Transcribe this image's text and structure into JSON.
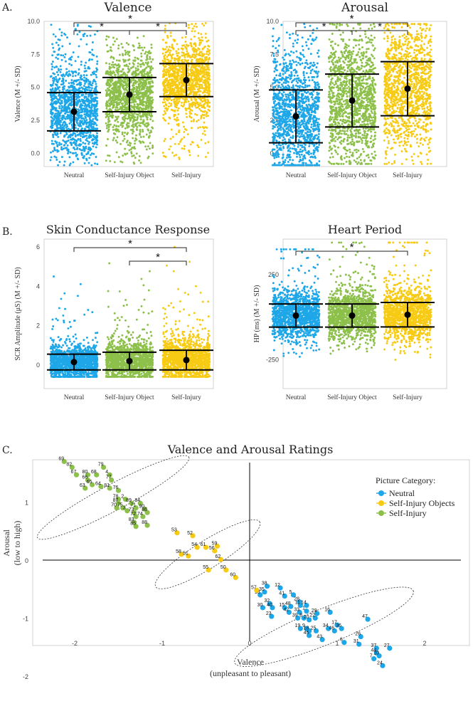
{
  "colors": {
    "neutral": "#1ea7e8",
    "self_injury_object": "#8cc04a",
    "self_injury": "#f7cb14"
  },
  "panel_labels": {
    "a": "A.",
    "b": "B.",
    "c": "C."
  },
  "chart_data": [
    {
      "type": "scatter",
      "id": "valence",
      "title": "Valence",
      "ylabel": "Valence (M +/- SD)",
      "ylim": [
        -1,
        10
      ],
      "yticks": [
        "0.0",
        "2.5",
        "5.0",
        "7.5",
        "10.0"
      ],
      "categories": [
        "Neutral",
        "Self-Injury Object",
        "Self-Injury"
      ],
      "means": [
        3.15,
        4.45,
        5.55
      ],
      "sd": [
        1.45,
        1.3,
        1.25
      ],
      "jitter_range": [
        [
          -0.9,
          9.8
        ],
        [
          -0.8,
          9.0
        ],
        [
          -0.5,
          10.0
        ]
      ],
      "significance": [
        "*",
        "*",
        "*"
      ]
    },
    {
      "type": "scatter",
      "id": "arousal",
      "title": "Arousal",
      "ylabel": "Arousal (M +/- SD)",
      "ylim": [
        -1,
        10
      ],
      "yticks": [
        "0.0",
        "2.5",
        "5.0",
        "7.5",
        "10.0"
      ],
      "categories": [
        "Neutral",
        "Self-Injury Object",
        "Self-Injury"
      ],
      "means": [
        2.8,
        4.0,
        4.9
      ],
      "sd": [
        2.0,
        2.0,
        2.05
      ],
      "jitter_range": [
        [
          -0.9,
          9.8
        ],
        [
          -0.8,
          9.8
        ],
        [
          -0.8,
          9.8
        ]
      ],
      "significance": [
        "*",
        "*",
        "*"
      ]
    },
    {
      "type": "scatter",
      "id": "scr",
      "title": "Skin Conductance Response",
      "ylabel": "SCR Amplitude (μS) (M +/- SD)",
      "ylim": [
        -1.2,
        6.4
      ],
      "yticks": [
        "0",
        "2",
        "4",
        "6"
      ],
      "categories": [
        "Neutral",
        "Self-Injury Object",
        "Self-Injury"
      ],
      "means": [
        0.15,
        0.2,
        0.25
      ],
      "sd": [
        0.4,
        0.45,
        0.5
      ],
      "jitter_range": [
        [
          -0.6,
          4.5
        ],
        [
          -0.6,
          5.5
        ],
        [
          -0.6,
          6.0
        ]
      ],
      "significance": [
        "*",
        "*"
      ]
    },
    {
      "type": "scatter",
      "id": "hp",
      "title": "Heart Period",
      "ylabel": "HP (ms) (M +/- SD)",
      "ylim": [
        -420,
        460
      ],
      "yticks": [
        "-250",
        "0",
        "250"
      ],
      "categories": [
        "Neutral",
        "Self-Injury Object",
        "Self-Injury"
      ],
      "means": [
        10,
        10,
        15
      ],
      "sd": [
        68,
        68,
        72
      ],
      "jitter_range": [
        [
          -390,
          400
        ],
        [
          -250,
          440
        ],
        [
          -320,
          440
        ]
      ],
      "significance": [
        "*"
      ]
    },
    {
      "type": "scatter",
      "id": "va",
      "title": "Valence and Arousal Ratings",
      "xlabel": "Valence",
      "xlabel2": "(unpleasant to pleasant)",
      "ylabel": "Arousal",
      "ylabel2": "(low to high)",
      "xlim": [
        -2.5,
        2.5
      ],
      "ylim": [
        -2.1,
        1.8
      ],
      "xticks": [
        "-2",
        "-1",
        "0",
        "1",
        "2"
      ],
      "yticks": [
        "-2",
        "-1",
        "0",
        "1"
      ],
      "legend_title": "Picture Category:",
      "legend": [
        "Neutral",
        "Self-Injury Objects",
        "Self-Injury"
      ],
      "series": [
        {
          "name": "Neutral",
          "points": [
            [
              "38",
              0.2,
              -0.45
            ],
            [
              "12",
              0.35,
              -0.48
            ],
            [
              "35",
              0.17,
              -0.55
            ],
            [
              "13",
              0.12,
              -0.6
            ],
            [
              "41",
              0.4,
              -0.62
            ],
            [
              "5",
              0.5,
              -0.6
            ],
            [
              "28",
              0.57,
              -0.72
            ],
            [
              "32",
              0.23,
              -0.75
            ],
            [
              "30",
              0.15,
              -0.82
            ],
            [
              "40",
              0.26,
              -0.82
            ],
            [
              "15",
              0.4,
              -0.82
            ],
            [
              "48",
              0.47,
              -0.8
            ],
            [
              "11",
              0.58,
              -0.78
            ],
            [
              "14",
              0.65,
              -0.78
            ],
            [
              "29",
              0.77,
              -0.92
            ],
            [
              "16",
              0.92,
              -0.9
            ],
            [
              "42",
              0.45,
              -0.9
            ],
            [
              "33",
              0.57,
              -0.9
            ],
            [
              "1",
              0.65,
              -0.88
            ],
            [
              "23",
              0.25,
              -0.97
            ],
            [
              "39",
              0.55,
              -1.0
            ],
            [
              "8",
              0.62,
              -1.0
            ],
            [
              "20",
              0.68,
              -1.03
            ],
            [
              "22",
              0.75,
              -1.0
            ],
            [
              "47",
              1.35,
              -1.02
            ],
            [
              "17",
              1.0,
              -1.12
            ],
            [
              "34",
              0.9,
              -1.18
            ],
            [
              "36",
              1.05,
              -1.18
            ],
            [
              "19",
              0.58,
              -1.18
            ],
            [
              "9",
              0.65,
              -1.18
            ],
            [
              "18",
              0.68,
              -1.22
            ],
            [
              "25",
              0.76,
              -1.22
            ],
            [
              "46",
              0.97,
              -1.22
            ],
            [
              "45",
              0.68,
              -1.3
            ],
            [
              "26",
              1.27,
              -1.32
            ],
            [
              "43",
              0.83,
              -1.37
            ],
            [
              "6",
              1.08,
              -1.42
            ],
            [
              "31",
              1.25,
              -1.45
            ],
            [
              "37",
              1.45,
              -1.52
            ],
            [
              "27",
              1.6,
              -1.52
            ],
            [
              "44",
              1.45,
              -1.6
            ],
            [
              "10",
              1.48,
              -1.65
            ],
            [
              "7",
              1.42,
              -1.7
            ],
            [
              "24",
              1.52,
              -1.82
            ]
          ]
        },
        {
          "name": "Self-Injury Objects",
          "points": [
            [
              "53",
              -0.83,
              0.47
            ],
            [
              "52",
              -0.65,
              0.42
            ],
            [
              "54",
              -0.6,
              0.22
            ],
            [
              "61",
              -0.5,
              0.22
            ],
            [
              "59",
              -0.37,
              0.24
            ],
            [
              "56",
              -0.4,
              0.16
            ],
            [
              "62",
              -0.33,
              0.01
            ],
            [
              "58",
              -0.78,
              0.1
            ],
            [
              "51",
              -0.7,
              0.07
            ],
            [
              "55",
              -0.47,
              -0.17
            ],
            [
              "50",
              -0.27,
              -0.17
            ],
            [
              "60",
              -0.16,
              -0.3
            ],
            [
              "57",
              0.08,
              -0.52
            ]
          ]
        },
        {
          "name": "Self-Injury",
          "points": [
            [
              "69",
              -2.12,
              1.7
            ],
            [
              "82",
              -2.03,
              1.6
            ],
            [
              "79",
              -1.67,
              1.6
            ],
            [
              "67",
              -1.98,
              1.47
            ],
            [
              "80",
              -1.85,
              1.47
            ],
            [
              "68",
              -1.75,
              1.47
            ],
            [
              "4",
              -1.6,
              1.47
            ],
            [
              "66",
              -1.85,
              1.38
            ],
            [
              "77",
              -1.58,
              1.38
            ],
            [
              "65",
              -1.8,
              1.3
            ],
            [
              "64",
              -1.7,
              1.27
            ],
            [
              "63",
              -1.88,
              1.24
            ],
            [
              "81",
              -1.6,
              1.24
            ],
            [
              "76",
              -1.5,
              1.2
            ],
            [
              "78",
              -1.5,
              1.05
            ],
            [
              "2",
              -1.42,
              1.05
            ],
            [
              "87",
              -1.5,
              0.98
            ],
            [
              "89",
              -1.35,
              0.98
            ],
            [
              "84",
              -1.25,
              0.98
            ],
            [
              "70",
              -1.52,
              0.9
            ],
            [
              "75",
              -1.45,
              0.9
            ],
            [
              "71",
              -1.3,
              0.9
            ],
            [
              "90",
              -1.2,
              0.88
            ],
            [
              "3",
              -1.4,
              0.85
            ],
            [
              "73",
              -1.32,
              0.82
            ],
            [
              "86",
              -1.17,
              0.82
            ],
            [
              "72",
              -1.3,
              0.75
            ],
            [
              "74",
              -1.22,
              0.75
            ],
            [
              "83",
              -1.32,
              0.65
            ],
            [
              "85",
              -1.3,
              0.58
            ],
            [
              "88",
              -1.17,
              0.6
            ]
          ]
        }
      ],
      "ellipses": [
        {
          "name": "Self-Injury",
          "cx": -1.56,
          "cy": 1.08,
          "rx": 0.98,
          "ry": 0.16,
          "angle_deg": -28
        },
        {
          "name": "Self-Injury Objects",
          "cx": -0.48,
          "cy": 0.1,
          "rx": 0.7,
          "ry": 0.17,
          "angle_deg": -32
        },
        {
          "name": "Neutral",
          "cx": 0.85,
          "cy": -1.15,
          "rx": 1.1,
          "ry": 0.22,
          "angle_deg": -22
        }
      ]
    }
  ]
}
